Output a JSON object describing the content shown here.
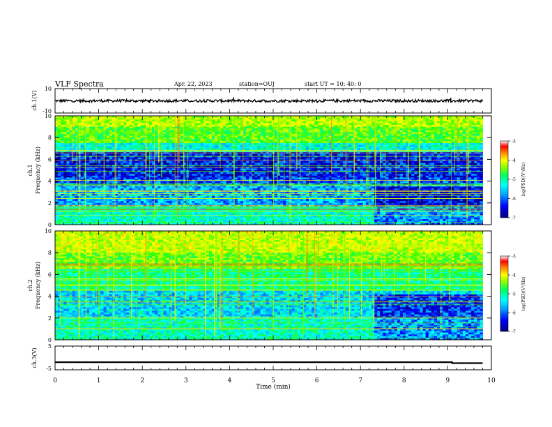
{
  "header": {
    "title": "VLF Spectra",
    "date": "Apr. 22, 2023",
    "station": "station=OUJ",
    "start_ut": "start  UT  =   10: 40: 0"
  },
  "chart_data": [
    {
      "type": "line",
      "panel": "ch1_waveform",
      "ylabel": "ch.1(V)",
      "ylim": [
        -10,
        10
      ],
      "yticks": [
        "10",
        "-10"
      ],
      "xlim": [
        0,
        10
      ],
      "note_color": "#000000"
    },
    {
      "type": "heatmap",
      "panel": "ch1_spectrogram",
      "ylabel_line1": "ch.1",
      "ylabel_line2": "Frequency  (kHz)",
      "ylim": [
        0,
        10
      ],
      "yticks": [
        "0",
        "2",
        "4",
        "6",
        "8",
        "10"
      ],
      "xlim": [
        0,
        9.8
      ],
      "colorbar": {
        "label": "log(PSD)(V²/Hz)",
        "range": [
          -7,
          -3
        ],
        "ticks": [
          "-3",
          "-4",
          "-5",
          "-6",
          "-7"
        ]
      },
      "bands": [
        {
          "f": [
            9.0,
            10.0
          ],
          "level": -4.6
        },
        {
          "f": [
            7.5,
            9.0
          ],
          "level": -5.0
        },
        {
          "f": [
            6.6,
            7.5
          ],
          "level": -5.7
        },
        {
          "f": [
            4.4,
            6.6
          ],
          "level": -6.6
        },
        {
          "f": [
            3.6,
            4.4
          ],
          "level": -6.4
        },
        {
          "f": [
            1.6,
            3.6
          ],
          "level": -6.1
        },
        {
          "f": [
            0.0,
            1.6
          ],
          "level": -5.6
        }
      ]
    },
    {
      "type": "heatmap",
      "panel": "ch2_spectrogram",
      "ylabel_line1": "ch.2",
      "ylabel_line2": "Frequency  (kHz)",
      "ylim": [
        0,
        10
      ],
      "yticks": [
        "0",
        "2",
        "4",
        "6",
        "8",
        "10"
      ],
      "xlim": [
        0,
        9.8
      ],
      "colorbar": {
        "label": "log(PSD)(V²/Hz)",
        "range": [
          -7,
          -3
        ],
        "ticks": [
          "-3",
          "-4",
          "-5",
          "-6",
          "-7"
        ]
      },
      "bands": [
        {
          "f": [
            8.0,
            10.0
          ],
          "level": -4.5
        },
        {
          "f": [
            6.5,
            8.0
          ],
          "level": -4.9
        },
        {
          "f": [
            4.5,
            6.5
          ],
          "level": -5.4
        },
        {
          "f": [
            2.0,
            4.5
          ],
          "level": -5.9
        },
        {
          "f": [
            0.0,
            2.0
          ],
          "level": -5.6
        }
      ]
    },
    {
      "type": "line",
      "panel": "ch3_waveform",
      "ylabel": "ch.3(V)",
      "ylim": [
        -5,
        5
      ],
      "yticks": [
        "5",
        "-5"
      ],
      "xlim": [
        0,
        10
      ],
      "x": [
        0,
        9.1,
        9.1,
        9.8
      ],
      "y": [
        -1.8,
        -1.8,
        -2.2,
        -2.2
      ]
    }
  ],
  "x_axis": {
    "label": "Time  (min)",
    "ticks": [
      "0",
      "1",
      "2",
      "3",
      "4",
      "5",
      "6",
      "7",
      "8",
      "9",
      "10"
    ]
  },
  "colors": {
    "colormap": [
      "#000080",
      "#0000ff",
      "#00a0ff",
      "#00ffff",
      "#00ff80",
      "#40ff00",
      "#c0ff00",
      "#ffff00",
      "#ff8000",
      "#ff0000",
      "#ffffff"
    ]
  }
}
